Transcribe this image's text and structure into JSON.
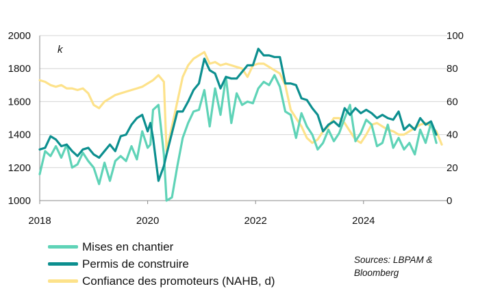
{
  "chart_data": {
    "type": "line",
    "unit_label": "k",
    "x_ticks": [
      "2018",
      "2020",
      "2022",
      "2024"
    ],
    "x_tick_values": [
      2018,
      2020,
      2022,
      2024
    ],
    "xlim": [
      2018,
      2025.55
    ],
    "y_left": {
      "ticks": [
        "1000",
        "1200",
        "1400",
        "1600",
        "1800",
        "2000"
      ],
      "range": [
        1000,
        2000
      ]
    },
    "y_right": {
      "ticks": [
        "0",
        "20",
        "40",
        "60",
        "80",
        "100"
      ],
      "range": [
        0,
        100
      ]
    },
    "series": [
      {
        "name": "Mises en chantier",
        "axis": "left",
        "color": "#5fd3b7",
        "x": [
          2018.0,
          2018.1,
          2018.2,
          2018.3,
          2018.4,
          2018.5,
          2018.6,
          2018.7,
          2018.8,
          2018.9,
          2019.0,
          2019.1,
          2019.2,
          2019.3,
          2019.4,
          2019.5,
          2019.6,
          2019.7,
          2019.8,
          2019.9,
          2020.0,
          2020.05,
          2020.1,
          2020.2,
          2020.3,
          2020.35,
          2020.45,
          2020.55,
          2020.65,
          2020.75,
          2020.85,
          2020.95,
          2021.05,
          2021.15,
          2021.25,
          2021.35,
          2021.45,
          2021.55,
          2021.65,
          2021.75,
          2021.85,
          2021.95,
          2022.05,
          2022.15,
          2022.25,
          2022.35,
          2022.45,
          2022.55,
          2022.65,
          2022.75,
          2022.85,
          2022.95,
          2023.05,
          2023.15,
          2023.25,
          2023.35,
          2023.45,
          2023.55,
          2023.65,
          2023.75,
          2023.85,
          2023.95,
          2024.05,
          2024.15,
          2024.25,
          2024.35,
          2024.45,
          2024.55,
          2024.65,
          2024.75,
          2024.85,
          2024.95,
          2025.05,
          2025.15,
          2025.25,
          2025.35
        ],
        "values": [
          1160,
          1300,
          1270,
          1330,
          1260,
          1340,
          1200,
          1220,
          1290,
          1240,
          1200,
          1100,
          1230,
          1120,
          1240,
          1270,
          1240,
          1330,
          1250,
          1420,
          1320,
          1340,
          1550,
          1580,
          1280,
          1000,
          1020,
          1210,
          1380,
          1470,
          1540,
          1550,
          1670,
          1450,
          1680,
          1520,
          1750,
          1470,
          1650,
          1580,
          1600,
          1590,
          1680,
          1720,
          1700,
          1760,
          1690,
          1540,
          1520,
          1380,
          1530,
          1450,
          1400,
          1310,
          1350,
          1430,
          1360,
          1410,
          1500,
          1580,
          1360,
          1410,
          1490,
          1460,
          1330,
          1350,
          1460,
          1320,
          1380,
          1310,
          1350,
          1280,
          1430,
          1350,
          1470,
          1350
        ]
      },
      {
        "name": "Permis de construire",
        "axis": "left",
        "color": "#0c8f8f",
        "x": [
          2018.0,
          2018.1,
          2018.2,
          2018.3,
          2018.4,
          2018.5,
          2018.6,
          2018.7,
          2018.8,
          2018.9,
          2019.0,
          2019.1,
          2019.2,
          2019.3,
          2019.4,
          2019.5,
          2019.6,
          2019.7,
          2019.8,
          2019.9,
          2020.0,
          2020.05,
          2020.1,
          2020.2,
          2020.3,
          2020.35,
          2020.45,
          2020.55,
          2020.65,
          2020.75,
          2020.85,
          2020.95,
          2021.05,
          2021.15,
          2021.25,
          2021.35,
          2021.45,
          2021.55,
          2021.65,
          2021.75,
          2021.85,
          2021.95,
          2022.05,
          2022.15,
          2022.25,
          2022.35,
          2022.45,
          2022.55,
          2022.65,
          2022.75,
          2022.85,
          2022.95,
          2023.05,
          2023.15,
          2023.25,
          2023.35,
          2023.45,
          2023.55,
          2023.65,
          2023.75,
          2023.85,
          2023.95,
          2024.05,
          2024.15,
          2024.25,
          2024.35,
          2024.45,
          2024.55,
          2024.65,
          2024.75,
          2024.85,
          2024.95,
          2025.05,
          2025.15,
          2025.25,
          2025.35
        ],
        "values": [
          1310,
          1320,
          1390,
          1370,
          1330,
          1340,
          1300,
          1270,
          1310,
          1320,
          1280,
          1260,
          1300,
          1340,
          1300,
          1390,
          1400,
          1460,
          1500,
          1520,
          1420,
          1470,
          1380,
          1120,
          1210,
          1280,
          1410,
          1540,
          1540,
          1600,
          1670,
          1710,
          1860,
          1790,
          1770,
          1680,
          1750,
          1740,
          1740,
          1780,
          1820,
          1820,
          1920,
          1880,
          1880,
          1870,
          1870,
          1710,
          1710,
          1700,
          1620,
          1610,
          1560,
          1520,
          1420,
          1460,
          1480,
          1450,
          1560,
          1520,
          1560,
          1530,
          1550,
          1530,
          1500,
          1520,
          1500,
          1490,
          1540,
          1430,
          1460,
          1430,
          1500,
          1460,
          1480,
          1400
        ]
      },
      {
        "name": "Confiance des promoteurs (NAHB, d)",
        "axis": "right",
        "color": "#fde28a",
        "x": [
          2018.0,
          2018.1,
          2018.2,
          2018.3,
          2018.4,
          2018.5,
          2018.6,
          2018.7,
          2018.8,
          2018.9,
          2019.0,
          2019.1,
          2019.2,
          2019.3,
          2019.4,
          2019.5,
          2019.6,
          2019.7,
          2019.8,
          2019.9,
          2020.0,
          2020.1,
          2020.2,
          2020.3,
          2020.35,
          2020.45,
          2020.55,
          2020.65,
          2020.75,
          2020.85,
          2020.95,
          2021.05,
          2021.15,
          2021.25,
          2021.35,
          2021.45,
          2021.55,
          2021.65,
          2021.75,
          2021.85,
          2021.95,
          2022.05,
          2022.15,
          2022.25,
          2022.35,
          2022.45,
          2022.55,
          2022.65,
          2022.75,
          2022.85,
          2022.95,
          2023.05,
          2023.15,
          2023.25,
          2023.35,
          2023.45,
          2023.55,
          2023.65,
          2023.75,
          2023.85,
          2023.95,
          2024.05,
          2024.15,
          2024.25,
          2024.35,
          2024.45,
          2024.55,
          2024.65,
          2024.75,
          2024.85,
          2024.95,
          2025.05,
          2025.15,
          2025.25,
          2025.35,
          2025.45
        ],
        "values": [
          73,
          72,
          70,
          69,
          70,
          68,
          68,
          67,
          68,
          65,
          58,
          56,
          60,
          62,
          64,
          65,
          66,
          67,
          68,
          69,
          71,
          73,
          76,
          72,
          30,
          45,
          60,
          75,
          82,
          86,
          88,
          90,
          83,
          84,
          82,
          83,
          82,
          81,
          80,
          75,
          82,
          83,
          83,
          81,
          79,
          77,
          70,
          55,
          50,
          45,
          38,
          35,
          37,
          42,
          45,
          50,
          50,
          47,
          42,
          37,
          35,
          40,
          46,
          47,
          45,
          43,
          42,
          40,
          40,
          42,
          44,
          46,
          47,
          45,
          42,
          34
        ]
      }
    ]
  },
  "sources": "Sources: LBPAM & Bloomberg"
}
